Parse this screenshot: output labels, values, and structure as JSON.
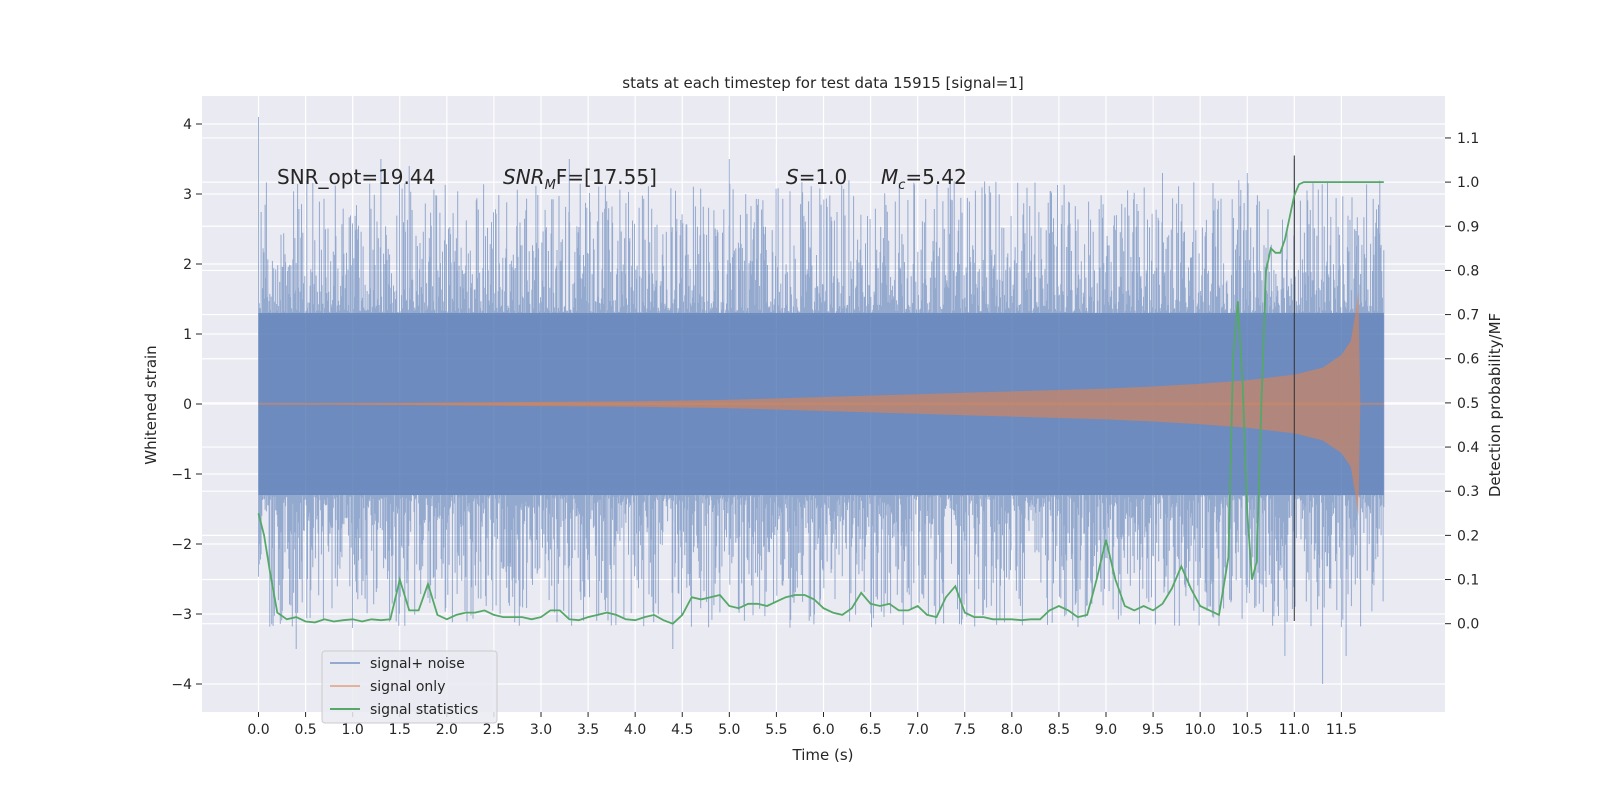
{
  "chart_data": {
    "type": "line",
    "title": "stats at each timestep for test data 15915 [signal=1]",
    "xlabel": "Time (s)",
    "ylabel": "Whitened strain",
    "ylabel_right": "Detection probability/MF",
    "xlim": [
      -0.6,
      12.6
    ],
    "ylim": [
      -4.4,
      4.4
    ],
    "ylim_right": [
      -0.2,
      1.195
    ],
    "x_ticks": [
      0.0,
      0.5,
      1.0,
      1.5,
      2.0,
      2.5,
      3.0,
      3.5,
      4.0,
      4.5,
      5.0,
      5.5,
      6.0,
      6.5,
      7.0,
      7.5,
      8.0,
      8.5,
      9.0,
      9.5,
      10.0,
      10.5,
      11.0,
      11.5
    ],
    "x_tick_labels": [
      "0.0",
      "0.5",
      "1.0",
      "1.5",
      "2.0",
      "2.5",
      "3.0",
      "3.5",
      "4.0",
      "4.5",
      "5.0",
      "5.5",
      "6.0",
      "6.5",
      "7.0",
      "7.5",
      "8.0",
      "8.5",
      "9.0",
      "9.5",
      "10.0",
      "10.5",
      "11.0",
      "11.5"
    ],
    "y_ticks": [
      -4,
      -3,
      -2,
      -1,
      0,
      1,
      2,
      3,
      4
    ],
    "y_tick_labels": [
      "−4",
      "−3",
      "−2",
      "−1",
      "0",
      "1",
      "2",
      "3",
      "4"
    ],
    "y_right_ticks": [
      0.0,
      0.1,
      0.2,
      0.3,
      0.4,
      0.5,
      0.6,
      0.7,
      0.8,
      0.9,
      1.0,
      1.1
    ],
    "y_right_tick_labels": [
      "0.0",
      "0.1",
      "0.2",
      "0.3",
      "0.4",
      "0.5",
      "0.6",
      "0.7",
      "0.8",
      "0.9",
      "1.0",
      "1.1"
    ],
    "grid": true,
    "legend_position": "lower-left",
    "vertical_line_x": 11.0,
    "annotations": {
      "snr_opt": "SNR_opt=19.44",
      "snr_mf_main": "SNR",
      "snr_mf_sub": "M",
      "snr_mf_rest": "F=[17.55]",
      "s_sym": "S",
      "s_val": "=1.0",
      "mc_sym": "M",
      "mc_sub": "c",
      "mc_val": "=5.42"
    },
    "noise_band": {
      "dense_amplitude": 1.3,
      "extreme_spikes": [
        {
          "x": 0.0,
          "y": 4.1
        },
        {
          "x": 0.4,
          "y": -3.5
        },
        {
          "x": 1.3,
          "y": 3.5
        },
        {
          "x": 1.6,
          "y": 3.4
        },
        {
          "x": 3.3,
          "y": 3.5
        },
        {
          "x": 4.4,
          "y": -3.5
        },
        {
          "x": 5.0,
          "y": 3.5
        },
        {
          "x": 9.6,
          "y": 3.3
        },
        {
          "x": 10.5,
          "y": 3.3
        },
        {
          "x": 10.9,
          "y": -3.6
        },
        {
          "x": 11.0,
          "y": 3.5
        },
        {
          "x": 11.3,
          "y": -4.0
        },
        {
          "x": 11.55,
          "y": -3.6
        }
      ]
    },
    "series": [
      {
        "name": "signal+ noise",
        "color": "#4c72b0",
        "kind": "noise band",
        "x_range": [
          0.0,
          11.95
        ]
      },
      {
        "name": "signal only",
        "color": "#dd8452",
        "kind": "chirp envelope",
        "envelope": {
          "x": [
            0.0,
            1.0,
            2.0,
            3.0,
            4.0,
            5.0,
            5.5,
            6.0,
            6.5,
            7.0,
            7.5,
            8.0,
            8.5,
            9.0,
            9.5,
            10.0,
            10.5,
            11.0,
            11.3,
            11.5,
            11.6,
            11.65,
            11.68,
            11.7,
            11.95
          ],
          "y": [
            0.0,
            0.01,
            0.02,
            0.03,
            0.04,
            0.06,
            0.08,
            0.1,
            0.12,
            0.14,
            0.16,
            0.18,
            0.2,
            0.22,
            0.25,
            0.29,
            0.34,
            0.42,
            0.52,
            0.7,
            0.9,
            1.3,
            1.6,
            0.0,
            0.0
          ]
        }
      },
      {
        "name": "signal statistics",
        "color": "#55a868",
        "kind": "line",
        "x": [
          0.0,
          0.06,
          0.12,
          0.2,
          0.3,
          0.4,
          0.5,
          0.6,
          0.7,
          0.8,
          0.9,
          1.0,
          1.1,
          1.2,
          1.3,
          1.4,
          1.5,
          1.6,
          1.7,
          1.8,
          1.9,
          2.0,
          2.1,
          2.2,
          2.3,
          2.4,
          2.5,
          2.6,
          2.7,
          2.8,
          2.9,
          3.0,
          3.1,
          3.2,
          3.3,
          3.4,
          3.5,
          3.6,
          3.7,
          3.8,
          3.9,
          4.0,
          4.1,
          4.2,
          4.3,
          4.4,
          4.5,
          4.6,
          4.7,
          4.8,
          4.9,
          5.0,
          5.1,
          5.2,
          5.3,
          5.4,
          5.5,
          5.6,
          5.7,
          5.8,
          5.9,
          6.0,
          6.1,
          6.2,
          6.3,
          6.4,
          6.5,
          6.6,
          6.7,
          6.8,
          6.9,
          7.0,
          7.1,
          7.2,
          7.3,
          7.4,
          7.5,
          7.6,
          7.7,
          7.8,
          7.9,
          8.0,
          8.1,
          8.2,
          8.3,
          8.4,
          8.5,
          8.6,
          8.7,
          8.8,
          8.9,
          9.0,
          9.1,
          9.2,
          9.3,
          9.4,
          9.5,
          9.6,
          9.7,
          9.8,
          9.9,
          10.0,
          10.1,
          10.2,
          10.3,
          10.35,
          10.4,
          10.45,
          10.5,
          10.55,
          10.6,
          10.65,
          10.7,
          10.75,
          10.8,
          10.85,
          10.9,
          10.95,
          11.0,
          11.05,
          11.1,
          11.15,
          11.2,
          11.3,
          11.4,
          11.5,
          11.6,
          11.7,
          11.8,
          11.9,
          11.95
        ],
        "y": [
          0.25,
          0.2,
          0.12,
          0.025,
          0.01,
          0.015,
          0.005,
          0.003,
          0.01,
          0.005,
          0.008,
          0.01,
          0.005,
          0.01,
          0.008,
          0.01,
          0.1,
          0.03,
          0.03,
          0.09,
          0.02,
          0.01,
          0.02,
          0.025,
          0.025,
          0.03,
          0.02,
          0.015,
          0.015,
          0.015,
          0.01,
          0.015,
          0.03,
          0.03,
          0.01,
          0.008,
          0.015,
          0.02,
          0.025,
          0.02,
          0.01,
          0.008,
          0.015,
          0.02,
          0.008,
          0.0,
          0.02,
          0.06,
          0.055,
          0.06,
          0.065,
          0.04,
          0.035,
          0.045,
          0.045,
          0.04,
          0.05,
          0.06,
          0.065,
          0.065,
          0.055,
          0.035,
          0.025,
          0.02,
          0.035,
          0.07,
          0.045,
          0.04,
          0.045,
          0.03,
          0.03,
          0.04,
          0.02,
          0.015,
          0.06,
          0.085,
          0.025,
          0.015,
          0.015,
          0.01,
          0.01,
          0.01,
          0.008,
          0.01,
          0.01,
          0.03,
          0.04,
          0.03,
          0.015,
          0.02,
          0.1,
          0.19,
          0.1,
          0.04,
          0.03,
          0.04,
          0.03,
          0.045,
          0.08,
          0.13,
          0.08,
          0.04,
          0.03,
          0.02,
          0.15,
          0.6,
          0.73,
          0.55,
          0.25,
          0.1,
          0.14,
          0.5,
          0.8,
          0.85,
          0.84,
          0.84,
          0.87,
          0.92,
          0.97,
          0.995,
          1.0,
          1.0,
          1.0,
          1.0,
          1.0,
          1.0,
          1.0,
          1.0,
          1.0,
          1.0,
          1.0
        ]
      }
    ]
  },
  "legend": {
    "items": [
      {
        "label": "signal+ noise",
        "color": "#4c72b0"
      },
      {
        "label": "signal only",
        "color": "#dd8452"
      },
      {
        "label": "signal statistics",
        "color": "#55a868"
      }
    ]
  }
}
